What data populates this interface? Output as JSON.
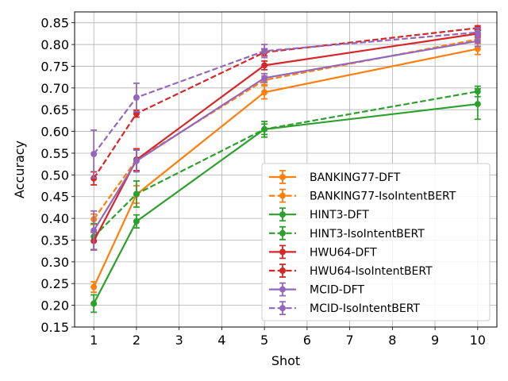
{
  "chart_data": {
    "type": "line",
    "title": "",
    "xlabel": "Shot",
    "ylabel": "Accuracy",
    "x": [
      1,
      2,
      5,
      10
    ],
    "xlim": [
      0.55,
      10.45
    ],
    "ylim": [
      0.15,
      0.875
    ],
    "xticks": [
      1,
      2,
      3,
      4,
      5,
      6,
      7,
      8,
      9,
      10
    ],
    "yticks": [
      0.15,
      0.2,
      0.25,
      0.3,
      0.35,
      0.4,
      0.45,
      0.5,
      0.55,
      0.6,
      0.65,
      0.7,
      0.75,
      0.8,
      0.85
    ],
    "ytick_labels": [
      "0.15",
      "0.20",
      "0.25",
      "0.30",
      "0.35",
      "0.40",
      "0.45",
      "0.50",
      "0.55",
      "0.60",
      "0.65",
      "0.70",
      "0.75",
      "0.80",
      "0.85"
    ],
    "grid": true,
    "legend_position": "lower-right",
    "series": [
      {
        "name": "BANKING77-DFT",
        "color": "#ff7f0e",
        "linestyle": "solid",
        "values": [
          0.242,
          0.455,
          0.69,
          0.79
        ],
        "errors": [
          0.012,
          0.02,
          0.015,
          0.013
        ]
      },
      {
        "name": "BANKING77-IsoIntentBERT",
        "color": "#ff7f0e",
        "linestyle": "dashed",
        "values": [
          0.398,
          0.535,
          0.718,
          0.812
        ],
        "errors": [
          0.012,
          0.025,
          0.01,
          0.01
        ]
      },
      {
        "name": "HINT3-DFT",
        "color": "#2ca02c",
        "linestyle": "solid",
        "values": [
          0.204,
          0.393,
          0.605,
          0.663
        ],
        "errors": [
          0.02,
          0.015,
          0.018,
          0.035
        ]
      },
      {
        "name": "HINT3-IsoIntentBERT",
        "color": "#2ca02c",
        "linestyle": "dashed",
        "values": [
          0.358,
          0.456,
          0.605,
          0.692
        ],
        "errors": [
          0.03,
          0.03,
          0.012,
          0.012
        ]
      },
      {
        "name": "HWU64-DFT",
        "color": "#d62728",
        "linestyle": "solid",
        "values": [
          0.348,
          0.535,
          0.752,
          0.825
        ],
        "errors": [
          0.02,
          0.025,
          0.01,
          0.008
        ]
      },
      {
        "name": "HWU64-IsoIntentBERT",
        "color": "#d62728",
        "linestyle": "dashed",
        "values": [
          0.492,
          0.641,
          0.782,
          0.838
        ],
        "errors": [
          0.015,
          0.008,
          0.008,
          0.005
        ]
      },
      {
        "name": "MCID-DFT",
        "color": "#9467bd",
        "linestyle": "solid",
        "values": [
          0.372,
          0.532,
          0.723,
          0.808
        ],
        "errors": [
          0.045,
          0.025,
          0.01,
          0.012
        ]
      },
      {
        "name": "MCID-IsoIntentBERT",
        "color": "#9467bd",
        "linestyle": "dashed",
        "values": [
          0.548,
          0.678,
          0.785,
          0.828
        ],
        "errors": [
          0.055,
          0.033,
          0.015,
          0.01
        ]
      }
    ]
  }
}
